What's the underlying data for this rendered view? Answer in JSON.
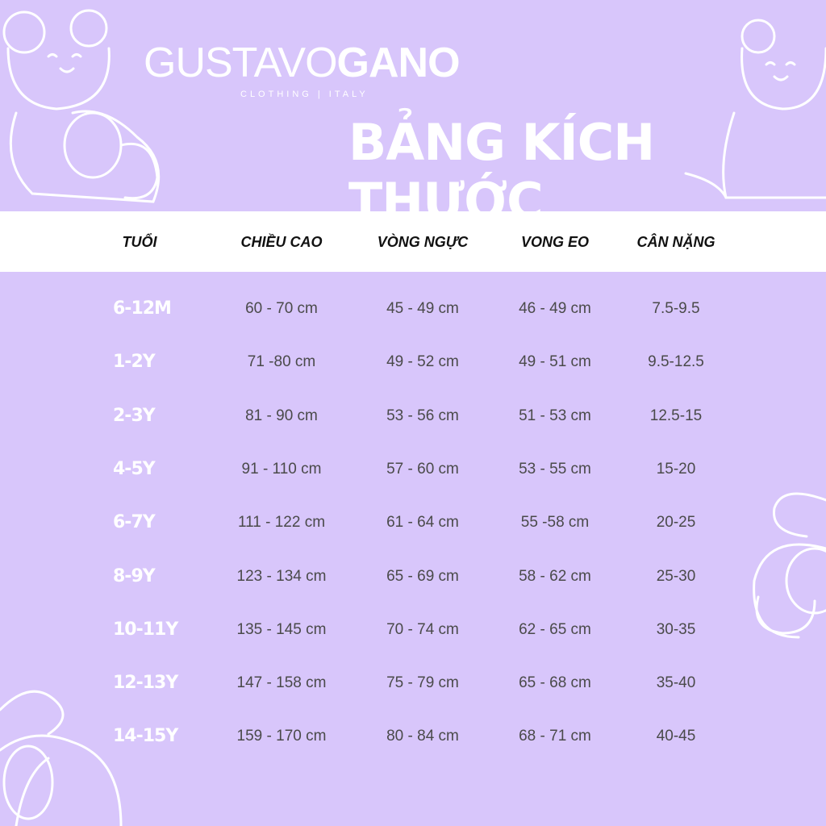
{
  "brand": {
    "name_light": "GUSTAVO",
    "name_bold": "GANO",
    "tagline": "CLOTHING | ITALY"
  },
  "title": "BẢNG KÍCH THƯỚC",
  "colors": {
    "background": "#d8c6fb",
    "header_band": "#ffffff",
    "value_text": "#4a4a4a",
    "age_text": "#ffffff"
  },
  "decorations": [
    "teddy-bear-outline-icon"
  ],
  "table": {
    "headers": [
      "TUỔI",
      "CHIỀU CAO",
      "VÒNG NGỰC",
      "VONG EO",
      "CÂN NẶNG"
    ],
    "rows": [
      [
        "6-12M",
        "60 - 70 cm",
        "45 - 49 cm",
        "46 - 49 cm",
        "7.5-9.5"
      ],
      [
        "1-2Y",
        "71 -80 cm",
        "49 - 52 cm",
        "49 - 51 cm",
        "9.5-12.5"
      ],
      [
        "2-3Y",
        "81 - 90 cm",
        "53 - 56 cm",
        "51 - 53 cm",
        "12.5-15"
      ],
      [
        "4-5Y",
        "91 - 110 cm",
        "57 - 60 cm",
        "53 - 55 cm",
        "15-20"
      ],
      [
        "6-7Y",
        "111 - 122 cm",
        "61 - 64 cm",
        "55 -58 cm",
        "20-25"
      ],
      [
        "8-9Y",
        "123 - 134 cm",
        "65 - 69 cm",
        "58 - 62 cm",
        "25-30"
      ],
      [
        "10-11Y",
        "135 - 145 cm",
        "70 - 74 cm",
        "62 - 65 cm",
        "30-35"
      ],
      [
        "12-13Y",
        "147 - 158 cm",
        "75 - 79 cm",
        "65 - 68 cm",
        "35-40"
      ],
      [
        "14-15Y",
        "159 - 170 cm",
        "80 - 84 cm",
        "68 - 71 cm",
        "40-45"
      ]
    ]
  }
}
